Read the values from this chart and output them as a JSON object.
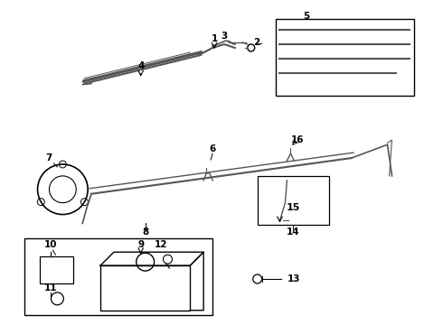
{
  "bg_color": "#ffffff",
  "line_color": "#000000",
  "figsize": [
    4.9,
    3.6
  ],
  "dpi": 100,
  "gray": "#555555"
}
